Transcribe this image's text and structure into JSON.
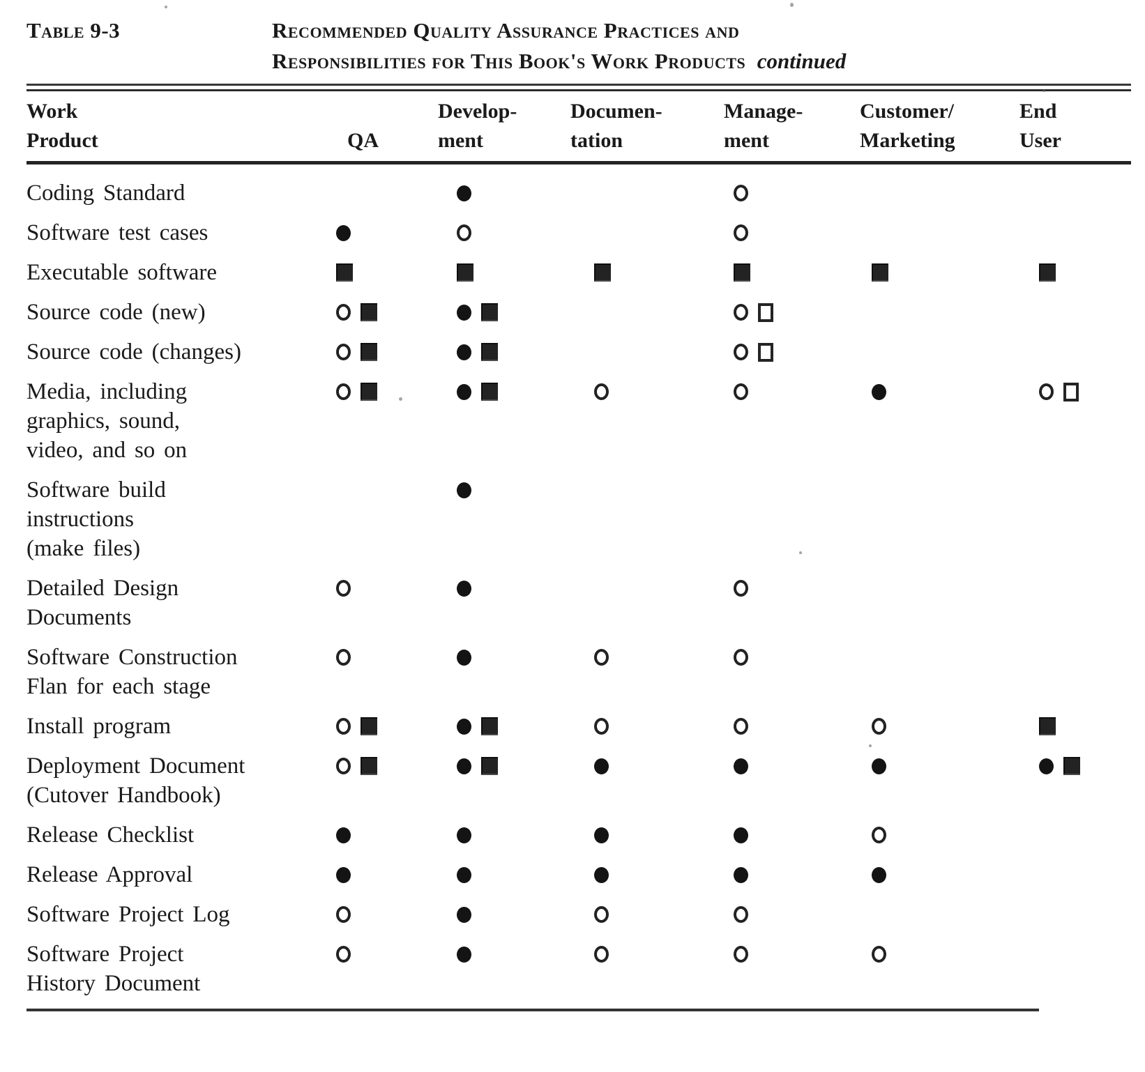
{
  "page": {
    "table_label": "Table 9-3",
    "title": {
      "line1": "Recommended Quality Assurance Practices and",
      "line2": "Responsibilities for This Book's Work Products",
      "continued": "continued"
    }
  },
  "columns": [
    {
      "slug": "work-product",
      "line1": "Work",
      "line2": "Product"
    },
    {
      "slug": "qa",
      "line1": "",
      "line2": "QA"
    },
    {
      "slug": "development",
      "line1": "Develop-",
      "line2": "ment"
    },
    {
      "slug": "documentation",
      "line1": "Documen-",
      "line2": "tation"
    },
    {
      "slug": "management",
      "line1": "Manage-",
      "line2": "ment"
    },
    {
      "slug": "customer-marketing",
      "line1": "Customer/",
      "line2": "Marketing"
    },
    {
      "slug": "end-user",
      "line1": "End",
      "line2": "User"
    }
  ],
  "symbols": [
    "filled-circle",
    "open-circle",
    "filled-square",
    "open-square"
  ],
  "rows": [
    {
      "label_lines": [
        "Coding Standard"
      ],
      "cells": [
        [],
        [
          "filled-circle"
        ],
        [],
        [
          "open-circle"
        ],
        [],
        []
      ]
    },
    {
      "label_lines": [
        "Software test cases"
      ],
      "cells": [
        [
          "filled-circle"
        ],
        [
          "open-circle"
        ],
        [],
        [
          "open-circle"
        ],
        [],
        []
      ]
    },
    {
      "label_lines": [
        "Executable software"
      ],
      "cells": [
        [
          "filled-square"
        ],
        [
          "filled-square"
        ],
        [
          "filled-square"
        ],
        [
          "filled-square"
        ],
        [
          "filled-square"
        ],
        [
          "filled-square"
        ]
      ]
    },
    {
      "label_lines": [
        "Source code (new)"
      ],
      "cells": [
        [
          "open-circle",
          "filled-square"
        ],
        [
          "filled-circle",
          "filled-square"
        ],
        [],
        [
          "open-circle",
          "open-square"
        ],
        [],
        []
      ]
    },
    {
      "label_lines": [
        "Source code (changes)"
      ],
      "cells": [
        [
          "open-circle",
          "filled-square"
        ],
        [
          "filled-circle",
          "filled-square"
        ],
        [],
        [
          "open-circle",
          "open-square"
        ],
        [],
        []
      ]
    },
    {
      "label_lines": [
        "Media, including",
        "graphics, sound,",
        "video, and so on"
      ],
      "cells": [
        [
          "open-circle",
          "filled-square"
        ],
        [
          "filled-circle",
          "filled-square"
        ],
        [
          "open-circle"
        ],
        [
          "open-circle"
        ],
        [
          "filled-circle"
        ],
        [
          "open-circle",
          "open-square"
        ]
      ]
    },
    {
      "label_lines": [
        "Software  build",
        "instructions",
        "(make files)"
      ],
      "cells": [
        [],
        [
          "filled-circle"
        ],
        [],
        [],
        [],
        []
      ]
    },
    {
      "label_lines": [
        "Detailed Design",
        "Documents"
      ],
      "cells": [
        [
          "open-circle"
        ],
        [
          "filled-circle"
        ],
        [],
        [
          "open-circle"
        ],
        [],
        []
      ]
    },
    {
      "label_lines": [
        "Software  Construction",
        "Flan for each stage"
      ],
      "cells": [
        [
          "open-circle"
        ],
        [
          "filled-circle"
        ],
        [
          "open-circle"
        ],
        [
          "open-circle"
        ],
        [],
        []
      ]
    },
    {
      "label_lines": [
        "Install program"
      ],
      "cells": [
        [
          "open-circle",
          "filled-square"
        ],
        [
          "filled-circle",
          "filled-square"
        ],
        [
          "open-circle"
        ],
        [
          "open-circle"
        ],
        [
          "open-circle"
        ],
        [
          "filled-square"
        ]
      ]
    },
    {
      "label_lines": [
        "Deployment Document",
        "(Cutover  Handbook)"
      ],
      "cells": [
        [
          "open-circle",
          "filled-square"
        ],
        [
          "filled-circle",
          "filled-square"
        ],
        [
          "filled-circle"
        ],
        [
          "filled-circle"
        ],
        [
          "filled-circle"
        ],
        [
          "filled-circle",
          "filled-square"
        ]
      ]
    },
    {
      "label_lines": [
        "Release  Checklist"
      ],
      "cells": [
        [
          "filled-circle"
        ],
        [
          "filled-circle"
        ],
        [
          "filled-circle"
        ],
        [
          "filled-circle"
        ],
        [
          "open-circle"
        ],
        []
      ]
    },
    {
      "label_lines": [
        "Release  Approval"
      ],
      "cells": [
        [
          "filled-circle"
        ],
        [
          "filled-circle"
        ],
        [
          "filled-circle"
        ],
        [
          "filled-circle"
        ],
        [
          "filled-circle"
        ],
        []
      ]
    },
    {
      "label_lines": [
        "Software Project Log"
      ],
      "cells": [
        [
          "open-circle"
        ],
        [
          "filled-circle"
        ],
        [
          "open-circle"
        ],
        [
          "open-circle"
        ],
        [],
        []
      ]
    },
    {
      "label_lines": [
        "Software Project",
        "History Document"
      ],
      "cells": [
        [
          "open-circle"
        ],
        [
          "filled-circle"
        ],
        [
          "open-circle"
        ],
        [
          "open-circle"
        ],
        [
          "open-circle"
        ],
        []
      ]
    }
  ],
  "colors": {
    "ink": "#1a1a1a",
    "paper": "#ffffff"
  }
}
